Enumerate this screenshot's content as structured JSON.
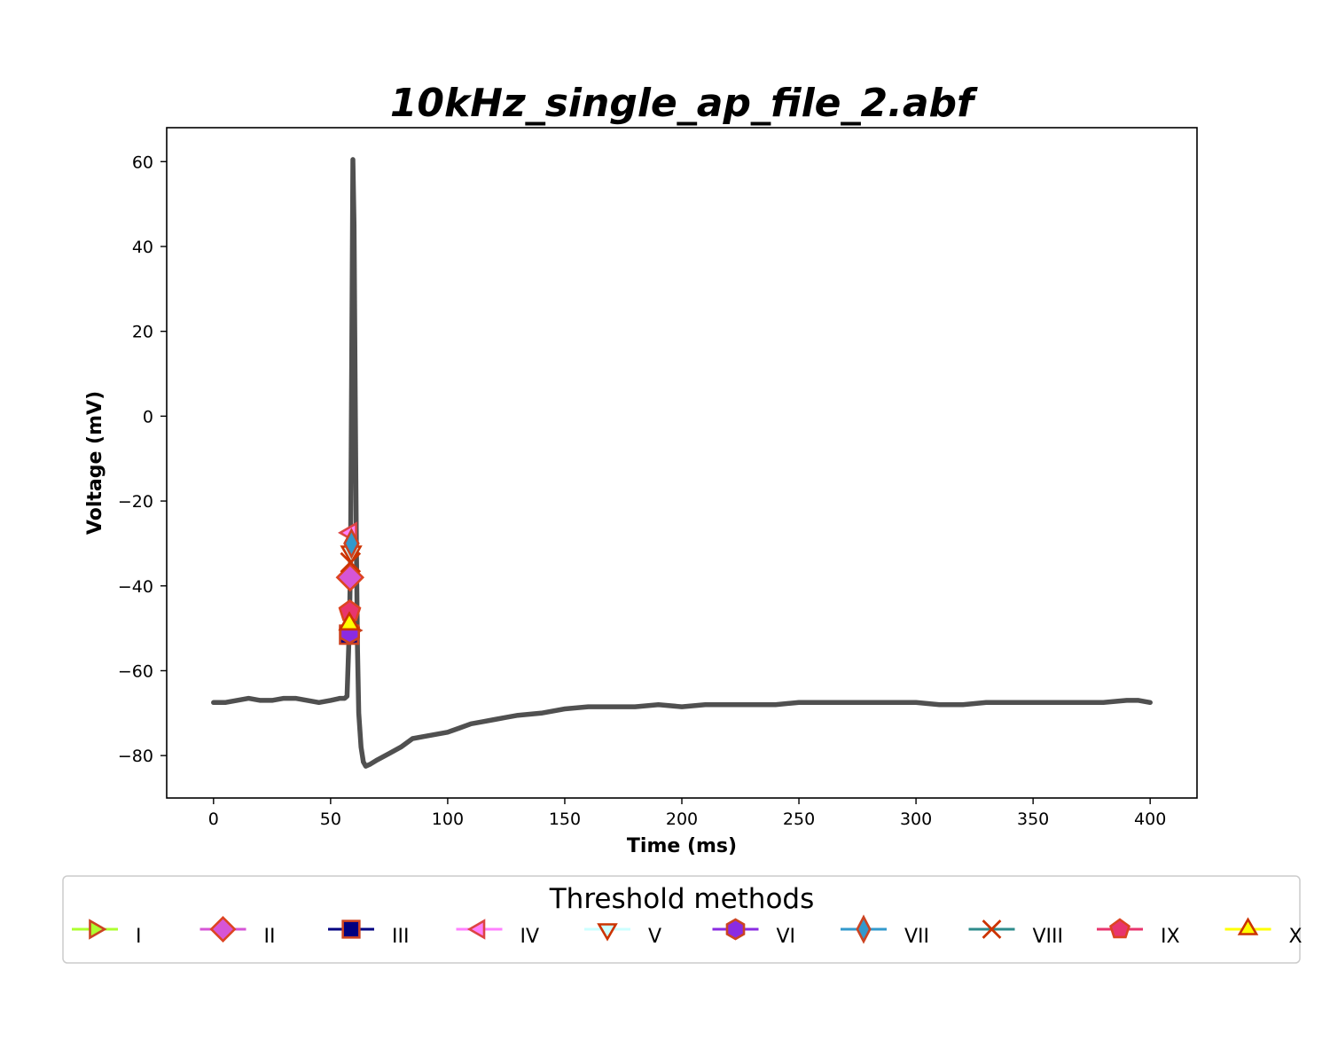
{
  "chart_data": {
    "type": "line",
    "title": "10kHz_single_ap_file_2.abf",
    "xlabel": "Time (ms)",
    "ylabel": "Voltage (mV)",
    "xlim": [
      -20,
      420
    ],
    "ylim": [
      -90,
      68
    ],
    "xticks": [
      0,
      50,
      100,
      150,
      200,
      250,
      300,
      350,
      400
    ],
    "xtick_labels": [
      "0",
      "50",
      "100",
      "150",
      "200",
      "250",
      "300",
      "350",
      "400"
    ],
    "yticks": [
      60,
      40,
      20,
      0,
      -20,
      -40,
      -60,
      -80
    ],
    "ytick_labels": [
      "60",
      "40",
      "20",
      "0",
      "−20",
      "−40",
      "−60",
      "−80"
    ],
    "grid": false,
    "trace": {
      "color": "#505050",
      "x": [
        0,
        5,
        10,
        15,
        20,
        25,
        30,
        35,
        40,
        45,
        50,
        54,
        56,
        57,
        57.5,
        58,
        58.5,
        59,
        59.5,
        60,
        60.5,
        61,
        61.5,
        62,
        63,
        64,
        65,
        67,
        70,
        75,
        80,
        85,
        90,
        95,
        100,
        105,
        110,
        115,
        120,
        125,
        130,
        140,
        150,
        160,
        170,
        180,
        190,
        200,
        210,
        220,
        230,
        240,
        250,
        260,
        270,
        280,
        290,
        300,
        310,
        320,
        330,
        340,
        350,
        360,
        370,
        380,
        390,
        395,
        400
      ],
      "y": [
        -67.5,
        -67.5,
        -67,
        -66.5,
        -67,
        -67,
        -66.5,
        -66.5,
        -67,
        -67.5,
        -67,
        -66.5,
        -66.5,
        -66,
        -58,
        -50,
        -35,
        10,
        60.5,
        45,
        5,
        -30,
        -55,
        -70,
        -78,
        -81.5,
        -82.5,
        -82,
        -81,
        -79.5,
        -78,
        -76,
        -75.5,
        -75,
        -74.5,
        -73.5,
        -72.5,
        -72,
        -71.5,
        -71,
        -70.5,
        -70,
        -69,
        -68.5,
        -68.5,
        -68.5,
        -68,
        -68.5,
        -68,
        -68,
        -68,
        -68,
        -67.5,
        -67.5,
        -67.5,
        -67.5,
        -67.5,
        -67.5,
        -68,
        -68,
        -67.5,
        -67.5,
        -67.5,
        -67.5,
        -67.5,
        -67.5,
        -67,
        -67,
        -67.5
      ]
    },
    "markers": [
      {
        "name": "I",
        "x": 58.4,
        "y": -50.5,
        "shape": "triangle-right",
        "color": "#adff2f",
        "edge": "#cc4422"
      },
      {
        "name": "II",
        "x": 58.3,
        "y": -38,
        "shape": "diamond",
        "color": "#d655d6",
        "edge": "#dd4422"
      },
      {
        "name": "III",
        "x": 57.9,
        "y": -51.5,
        "shape": "square",
        "color": "#000080",
        "edge": "#cc4422"
      },
      {
        "name": "IV",
        "x": 58.6,
        "y": -27.5,
        "shape": "triangle-left",
        "color": "#ff80ff",
        "edge": "#dd4444"
      },
      {
        "name": "V",
        "x": 58.8,
        "y": -32,
        "shape": "triangle-down",
        "color": "#ccffff",
        "edge": "#cc3300"
      },
      {
        "name": "VI",
        "x": 58.1,
        "y": -51,
        "shape": "hexagon",
        "color": "#8a2be2",
        "edge": "#cc4422"
      },
      {
        "name": "VII",
        "x": 58.9,
        "y": -30,
        "shape": "thin-diamond",
        "color": "#3399cc",
        "edge": "#cc4422"
      },
      {
        "name": "VIII",
        "x": 58.5,
        "y": -34.5,
        "shape": "x",
        "color": "#2e8b8b",
        "edge": "#cc3300"
      },
      {
        "name": "IX",
        "x": 58.2,
        "y": -46,
        "shape": "pentagon",
        "color": "#e8356e",
        "edge": "#dd4422"
      },
      {
        "name": "X",
        "x": 58.0,
        "y": -49,
        "shape": "triangle-up",
        "color": "#ffff00",
        "edge": "#cc3300"
      }
    ],
    "legend": {
      "title": "Threshold methods",
      "placement": "lower center",
      "entries": [
        "I",
        "II",
        "III",
        "IV",
        "V",
        "VI",
        "VII",
        "VIII",
        "IX",
        "X"
      ]
    }
  }
}
